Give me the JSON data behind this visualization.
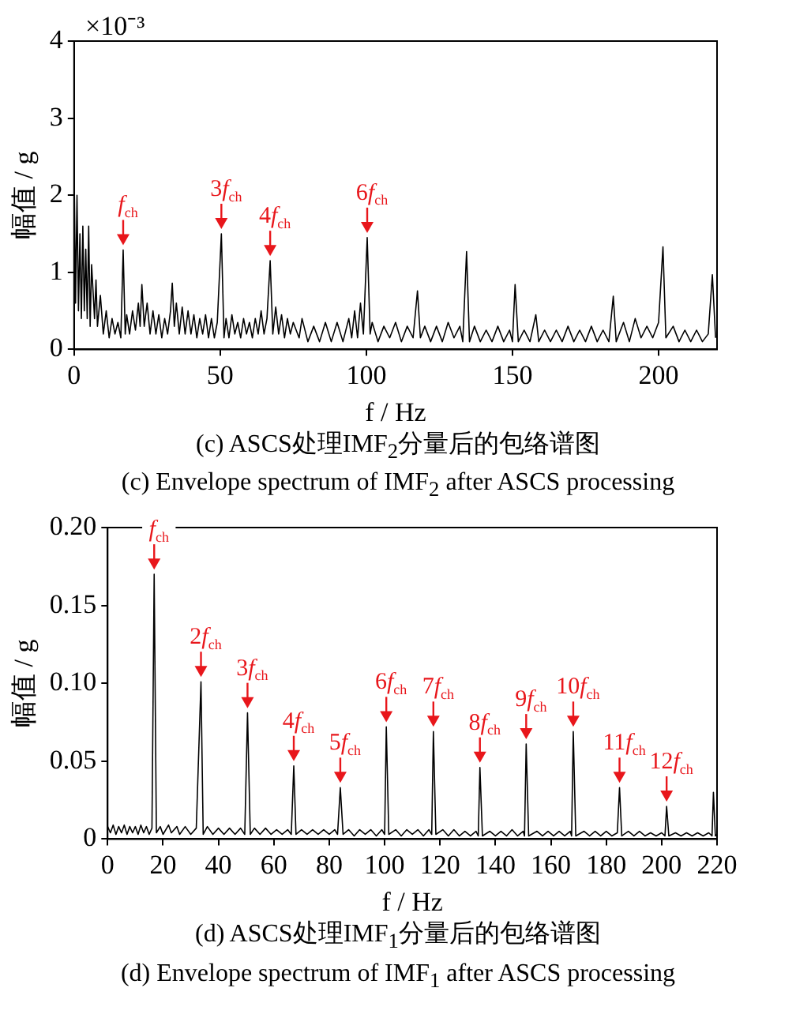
{
  "chart_data": [
    {
      "type": "line",
      "title": "(c)  ASCS处理IMF$_{2}$分量后的包络谱图",
      "subtitle": "(c)  Envelope spectrum of IMF$_{2}$ after ASCS processing",
      "xlabel": "f / Hz",
      "ylabel": "幅值 / g",
      "xlim": [
        0,
        220
      ],
      "xticks": [
        0,
        50,
        100,
        150,
        200
      ],
      "ylim": [
        0,
        4
      ],
      "yticks": [
        0,
        1,
        2,
        3,
        4
      ],
      "annotations": [
        "×10⁻³",
        {
          "text": "f$_{ch}$",
          "x": 16.8,
          "y": 1.29
        },
        {
          "text": "3f$_{ch}$",
          "x": 50.4,
          "y": 1.5
        },
        {
          "text": "4f$_{ch}$",
          "x": 67.1,
          "y": 1.15
        },
        {
          "text": "6f$_{ch}$",
          "x": 100.3,
          "y": 1.45
        }
      ],
      "series": [
        {
          "color": "#000000",
          "x": [
            0,
            0.5,
            1,
            1.5,
            2,
            2.5,
            3,
            3.5,
            4,
            4.5,
            5,
            5.5,
            6,
            7,
            7.5,
            8,
            9,
            10,
            11,
            12,
            13,
            14,
            15,
            16,
            16.8,
            17.5,
            18,
            19,
            20,
            21,
            22,
            22.6,
            23.2,
            24,
            25,
            26,
            27,
            28,
            29,
            30,
            31,
            32,
            33,
            33.6,
            34.3,
            35,
            36,
            37,
            38,
            39,
            40,
            41,
            42,
            43,
            44,
            45,
            46,
            47,
            48,
            49,
            50.4,
            51.3,
            52,
            53,
            54,
            55,
            56,
            57,
            58,
            59,
            60,
            61,
            62,
            63,
            64,
            65,
            66,
            67.1,
            68,
            69,
            70,
            71,
            72,
            73,
            74,
            75,
            77,
            78,
            80,
            82,
            84,
            86,
            88,
            90,
            92,
            94,
            95,
            96,
            97,
            98,
            99,
            100.3,
            101.3,
            102,
            104,
            106,
            108,
            110,
            112,
            114,
            116,
            117.5,
            118.5,
            120,
            122,
            124,
            126,
            128,
            130,
            132,
            133,
            134.3,
            135.3,
            137,
            139,
            141,
            143,
            145,
            147,
            149,
            150,
            150.9,
            152,
            154,
            156,
            158,
            159,
            161,
            163,
            165,
            167,
            169,
            171,
            173,
            175,
            177,
            179,
            181,
            183,
            184.5,
            185.5,
            188,
            190,
            192,
            194,
            196,
            198,
            200,
            201.5,
            202.5,
            205,
            207,
            209,
            211,
            213,
            215,
            217,
            218.4,
            219.5
          ],
          "values": [
            2.4,
            0.6,
            2.0,
            0.5,
            1.5,
            0.4,
            1.6,
            0.5,
            1.3,
            0.4,
            1.6,
            0.3,
            1.1,
            0.4,
            0.9,
            0.3,
            0.7,
            0.2,
            0.5,
            0.15,
            0.4,
            0.2,
            0.35,
            0.15,
            1.29,
            0.2,
            0.45,
            0.2,
            0.5,
            0.25,
            0.6,
            0.3,
            0.84,
            0.3,
            0.6,
            0.2,
            0.5,
            0.2,
            0.45,
            0.15,
            0.4,
            0.2,
            0.5,
            0.86,
            0.3,
            0.6,
            0.2,
            0.55,
            0.2,
            0.5,
            0.2,
            0.45,
            0.15,
            0.4,
            0.2,
            0.45,
            0.15,
            0.4,
            0.15,
            0.35,
            1.5,
            0.15,
            0.4,
            0.15,
            0.45,
            0.2,
            0.35,
            0.15,
            0.4,
            0.2,
            0.35,
            0.15,
            0.4,
            0.2,
            0.5,
            0.2,
            0.4,
            1.15,
            0.2,
            0.55,
            0.2,
            0.45,
            0.15,
            0.4,
            0.2,
            0.35,
            0.15,
            0.4,
            0.1,
            0.3,
            0.1,
            0.35,
            0.1,
            0.35,
            0.1,
            0.4,
            0.15,
            0.5,
            0.15,
            0.6,
            0.2,
            1.45,
            0.2,
            0.35,
            0.1,
            0.3,
            0.15,
            0.35,
            0.1,
            0.3,
            0.15,
            0.76,
            0.15,
            0.3,
            0.1,
            0.3,
            0.1,
            0.35,
            0.15,
            0.3,
            0.1,
            1.27,
            0.1,
            0.3,
            0.1,
            0.25,
            0.1,
            0.3,
            0.1,
            0.25,
            0.1,
            0.84,
            0.1,
            0.25,
            0.1,
            0.45,
            0.1,
            0.25,
            0.1,
            0.25,
            0.1,
            0.3,
            0.1,
            0.25,
            0.1,
            0.3,
            0.1,
            0.25,
            0.1,
            0.69,
            0.1,
            0.35,
            0.1,
            0.4,
            0.15,
            0.3,
            0.15,
            0.35,
            1.33,
            0.15,
            0.3,
            0.1,
            0.25,
            0.1,
            0.25,
            0.1,
            0.2,
            0.97,
            0.15
          ]
        }
      ]
    },
    {
      "type": "line",
      "title": "(d)  ASCS处理IMF$_{1}$分量后的包络谱图",
      "subtitle": "(d)  Envelope spectrum of IMF$_{1}$ after ASCS processing",
      "xlabel": "f / Hz",
      "ylabel": "幅值 / g",
      "xlim": [
        0,
        220
      ],
      "xticks": [
        0,
        20,
        40,
        60,
        80,
        100,
        120,
        140,
        160,
        180,
        200,
        220
      ],
      "ylim": [
        0,
        0.2
      ],
      "yticks": [
        0,
        0.05,
        {
          "value": 0.1,
          "label": "0.10"
        },
        0.15,
        {
          "value": 0.2,
          "label": "0.20"
        }
      ],
      "annotations": [
        {
          "text": "f$_{ch}$",
          "x": 16.8,
          "y": 0.17
        },
        {
          "text": "2f$_{ch}$",
          "x": 33.7,
          "y": 0.101
        },
        {
          "text": "3f$_{ch}$",
          "x": 50.5,
          "y": 0.081
        },
        {
          "text": "4f$_{ch}$",
          "x": 67.2,
          "y": 0.047
        },
        {
          "text": "5f$_{ch}$",
          "x": 84.0,
          "y": 0.033
        },
        {
          "text": "6f$_{ch}$",
          "x": 100.6,
          "y": 0.072
        },
        {
          "text": "7f$_{ch}$",
          "x": 117.6,
          "y": 0.069
        },
        {
          "text": "8f$_{ch}$",
          "x": 134.4,
          "y": 0.046
        },
        {
          "text": "9f$_{ch}$",
          "x": 151.1,
          "y": 0.061
        },
        {
          "text": "10f$_{ch}$",
          "x": 168.1,
          "y": 0.069
        },
        {
          "text": "11f$_{ch}$",
          "x": 184.8,
          "y": 0.033
        },
        {
          "text": "12f$_{ch}$",
          "x": 201.8,
          "y": 0.021
        }
      ],
      "series": [
        {
          "color": "#000000",
          "x": [
            0,
            1,
            2,
            3,
            4,
            5,
            6,
            7,
            8,
            9,
            10,
            11,
            12,
            13,
            14,
            15,
            16,
            16.8,
            17.6,
            19,
            20,
            22,
            23,
            25,
            26,
            28,
            30,
            32,
            33.7,
            34.5,
            36,
            38,
            40,
            42,
            44,
            46,
            48,
            49.5,
            50.5,
            51.5,
            53,
            55,
            57,
            59,
            61,
            63,
            65,
            66.3,
            67.2,
            68,
            70,
            72,
            74,
            76,
            78,
            80,
            82,
            83,
            84.0,
            85,
            87,
            89,
            91,
            93,
            95,
            97,
            99,
            100,
            100.6,
            101.5,
            104,
            106,
            108,
            110,
            112,
            114,
            116,
            117,
            117.6,
            118.5,
            121,
            123,
            125,
            127,
            129,
            131,
            133,
            133.8,
            134.4,
            135.3,
            138,
            140,
            142,
            144,
            146,
            148,
            150,
            150.5,
            151.1,
            152,
            155,
            157,
            159,
            161,
            163,
            165,
            167,
            167.5,
            168.1,
            169,
            172,
            174,
            176,
            178,
            180,
            182,
            184,
            184.8,
            185.6,
            188,
            190,
            192,
            194,
            196,
            198,
            200,
            201.2,
            201.8,
            202.6,
            205,
            207,
            209,
            211,
            213,
            215,
            217,
            218.2,
            218.7,
            219.4,
            220
          ],
          "values": [
            0.008,
            0.004,
            0.009,
            0.003,
            0.008,
            0.004,
            0.009,
            0.003,
            0.008,
            0.004,
            0.008,
            0.003,
            0.009,
            0.004,
            0.008,
            0.003,
            0.007,
            0.17,
            0.004,
            0.008,
            0.003,
            0.009,
            0.004,
            0.008,
            0.003,
            0.008,
            0.003,
            0.007,
            0.101,
            0.003,
            0.008,
            0.003,
            0.007,
            0.003,
            0.007,
            0.003,
            0.007,
            0.003,
            0.081,
            0.003,
            0.007,
            0.003,
            0.007,
            0.003,
            0.006,
            0.003,
            0.006,
            0.003,
            0.047,
            0.003,
            0.006,
            0.003,
            0.006,
            0.003,
            0.006,
            0.003,
            0.006,
            0.003,
            0.033,
            0.003,
            0.006,
            0.002,
            0.006,
            0.003,
            0.006,
            0.002,
            0.006,
            0.003,
            0.072,
            0.003,
            0.006,
            0.002,
            0.006,
            0.003,
            0.006,
            0.002,
            0.006,
            0.003,
            0.069,
            0.003,
            0.006,
            0.002,
            0.006,
            0.002,
            0.005,
            0.002,
            0.005,
            0.002,
            0.046,
            0.002,
            0.005,
            0.002,
            0.005,
            0.002,
            0.006,
            0.002,
            0.005,
            0.002,
            0.061,
            0.002,
            0.005,
            0.002,
            0.005,
            0.002,
            0.005,
            0.002,
            0.005,
            0.002,
            0.069,
            0.002,
            0.005,
            0.002,
            0.005,
            0.002,
            0.005,
            0.002,
            0.004,
            0.033,
            0.002,
            0.005,
            0.002,
            0.005,
            0.002,
            0.004,
            0.002,
            0.004,
            0.002,
            0.021,
            0.002,
            0.004,
            0.002,
            0.004,
            0.002,
            0.004,
            0.002,
            0.004,
            0.002,
            0.03,
            0.002,
            0.003
          ]
        }
      ]
    }
  ]
}
